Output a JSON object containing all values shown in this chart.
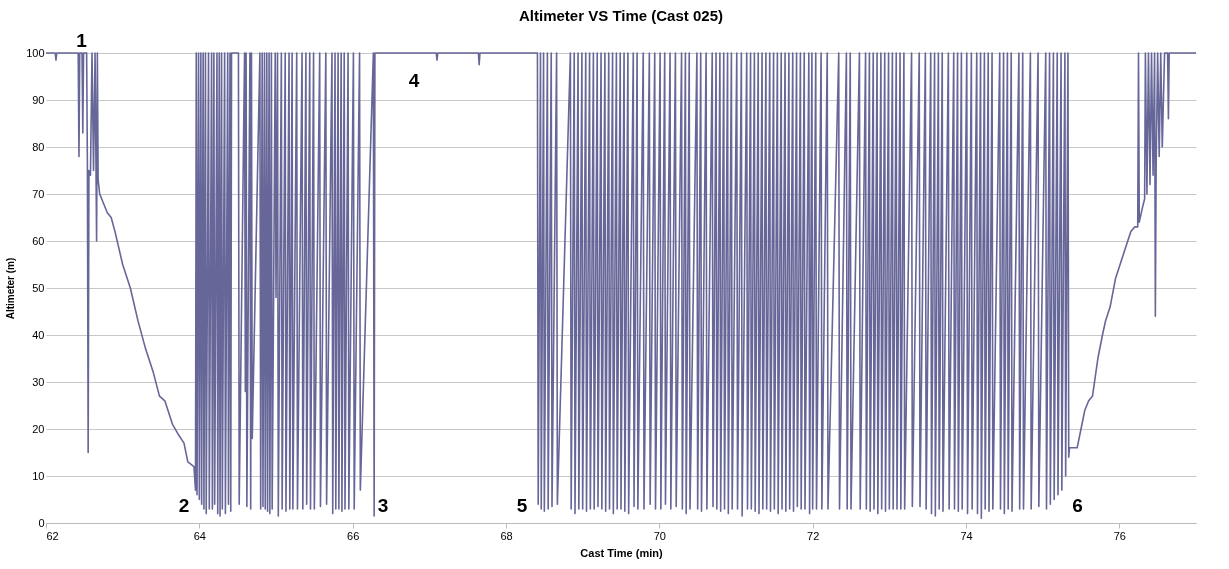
{
  "chart_data": {
    "type": "line",
    "title": "Altimeter VS Time (Cast 025)",
    "xlabel": "Cast Time (min)",
    "ylabel": "Altimeter (m)",
    "xlim": [
      62,
      77
    ],
    "xticks": [
      62,
      64,
      66,
      68,
      70,
      72,
      74,
      76
    ],
    "ylim": [
      0,
      100
    ],
    "yticks": [
      0,
      10,
      20,
      30,
      40,
      50,
      60,
      70,
      80,
      90,
      100
    ],
    "grid": "y",
    "marker": "none",
    "line_style": "solid",
    "annotations": [
      "1",
      "2",
      "3",
      "4",
      "5",
      "6"
    ],
    "series": [
      {
        "color": "#666699",
        "x": [
          62,
          62.12,
          62.13,
          62.14,
          62.42,
          62.43,
          62.44,
          62.47,
          62.48,
          62.49,
          62.53,
          62.54,
          62.55,
          62.56,
          62.58,
          62.6,
          62.62,
          62.64,
          62.66,
          62.67,
          62.68,
          62.7,
          62.8,
          62.85,
          62.9,
          63.0,
          63.1,
          63.2,
          63.3,
          63.4,
          63.48,
          63.55,
          63.65,
          63.72,
          63.8,
          63.85,
          63.93,
          63.95,
          63.96,
          63.97,
          63.99,
          64.0,
          64.02,
          64.03,
          64.05,
          64.06,
          64.08,
          64.09,
          64.12,
          64.13,
          64.16,
          64.17,
          64.19,
          64.2,
          64.23,
          64.24,
          64.26,
          64.27,
          64.29,
          64.3,
          64.33,
          64.34,
          64.37,
          64.38,
          64.4,
          64.41,
          64.42,
          64.51,
          64.52,
          64.59,
          64.6,
          64.61,
          64.62,
          64.66,
          64.67,
          64.68,
          64.69,
          64.79,
          64.8,
          64.82,
          64.83,
          64.85,
          64.86,
          64.88,
          64.89,
          64.91,
          64.92,
          64.94,
          64.95,
          64.99,
          65.0,
          65.02,
          65.03,
          65.07,
          65.08,
          65.12,
          65.13,
          65.17,
          65.18,
          65.21,
          65.22,
          65.27,
          65.28,
          65.34,
          65.35,
          65.39,
          65.4,
          65.44,
          65.45,
          65.49,
          65.5,
          65.57,
          65.58,
          65.65,
          65.66,
          65.73,
          65.74,
          65.77,
          65.78,
          65.81,
          65.82,
          65.85,
          65.86,
          65.89,
          65.9,
          65.94,
          65.95,
          66.01,
          66.02,
          66.09,
          66.1,
          66.27,
          66.28,
          66.29,
          67.09,
          67.1,
          67.11,
          67.64,
          67.65,
          67.66,
          68.41,
          68.42,
          68.45,
          68.46,
          68.49,
          68.5,
          68.54,
          68.55,
          68.59,
          68.6,
          68.66,
          68.67,
          68.84,
          68.85,
          68.89,
          68.9,
          68.94,
          68.95,
          68.99,
          69.0,
          69.04,
          69.05,
          69.09,
          69.1,
          69.14,
          69.15,
          69.19,
          69.2,
          69.24,
          69.25,
          69.29,
          69.3,
          69.34,
          69.35,
          69.39,
          69.4,
          69.44,
          69.45,
          69.49,
          69.5,
          69.54,
          69.55,
          69.59,
          69.6,
          69.66,
          69.67,
          69.71,
          69.72,
          69.79,
          69.8,
          69.87,
          69.88,
          69.94,
          69.95,
          70.01,
          70.02,
          70.07,
          70.08,
          70.14,
          70.15,
          70.21,
          70.22,
          70.29,
          70.3,
          70.34,
          70.35,
          70.39,
          70.4,
          70.49,
          70.5,
          70.54,
          70.55,
          70.61,
          70.62,
          70.69,
          70.7,
          70.74,
          70.75,
          70.79,
          70.8,
          70.84,
          70.85,
          70.89,
          70.9,
          70.94,
          70.95,
          71.01,
          71.02,
          71.07,
          71.08,
          71.14,
          71.15,
          71.19,
          71.2,
          71.24,
          71.25,
          71.29,
          71.3,
          71.34,
          71.35,
          71.39,
          71.4,
          71.44,
          71.45,
          71.49,
          71.5,
          71.54,
          71.55,
          71.59,
          71.6,
          71.64,
          71.65,
          71.69,
          71.7,
          71.74,
          71.75,
          71.79,
          71.8,
          71.84,
          71.85,
          71.89,
          71.9,
          71.95,
          71.96,
          71.99,
          72.0,
          72.04,
          72.05,
          72.11,
          72.12,
          72.19,
          72.2,
          72.34,
          72.35,
          72.44,
          72.45,
          72.49,
          72.5,
          72.61,
          72.62,
          72.69,
          72.7,
          72.74,
          72.75,
          72.79,
          72.8,
          72.84,
          72.85,
          72.89,
          72.9,
          72.94,
          72.95,
          72.99,
          73.0,
          73.04,
          73.05,
          73.09,
          73.1,
          73.14,
          73.15,
          73.19,
          73.2,
          73.29,
          73.3,
          73.39,
          73.4,
          73.47,
          73.48,
          73.54,
          73.55,
          73.59,
          73.6,
          73.64,
          73.65,
          73.69,
          73.7,
          73.77,
          73.78,
          73.84,
          73.85,
          73.89,
          73.9,
          73.94,
          73.95,
          74.01,
          74.02,
          74.07,
          74.08,
          74.14,
          74.15,
          74.19,
          74.2,
          74.24,
          74.25,
          74.29,
          74.3,
          74.34,
          74.35,
          74.44,
          74.45,
          74.49,
          74.5,
          74.54,
          74.55,
          74.59,
          74.6,
          74.69,
          74.7,
          74.74,
          74.75,
          74.84,
          74.85,
          74.94,
          74.95,
          75.04,
          75.05,
          75.09,
          75.1,
          75.14,
          75.15,
          75.19,
          75.2,
          75.24,
          75.25,
          75.29,
          75.3,
          75.33,
          75.34,
          75.35,
          75.45,
          75.5,
          75.55,
          75.6,
          75.65,
          75.72,
          75.78,
          75.82,
          75.88,
          75.95,
          76.05,
          76.15,
          76.2,
          76.24,
          76.25,
          76.26,
          76.3,
          76.33,
          76.34,
          76.36,
          76.38,
          76.4,
          76.42,
          76.44,
          76.46,
          76.47,
          76.48,
          76.5,
          76.52,
          76.54,
          76.56,
          76.59,
          76.63,
          76.64,
          76.65,
          77
        ],
        "values": [
          100,
          100,
          98.5,
          100,
          100,
          78,
          100,
          100,
          83,
          100,
          100,
          76,
          15,
          75,
          74,
          100,
          75,
          100,
          60,
          100,
          73,
          70,
          66,
          65,
          62,
          55,
          50,
          43,
          37,
          32,
          27,
          26,
          21,
          19,
          17,
          13,
          12,
          7,
          100,
          6,
          100,
          5,
          100,
          4,
          100,
          3,
          100,
          2,
          100,
          3,
          100,
          3,
          100,
          4,
          100,
          2,
          100,
          1.5,
          100,
          3,
          100,
          2,
          100,
          4,
          100,
          2.5,
          100,
          100,
          4,
          100,
          28,
          100,
          3.5,
          100,
          3,
          100,
          18,
          100,
          3,
          100,
          3.5,
          100,
          3,
          100,
          2.5,
          100,
          2,
          100,
          3,
          100,
          48,
          100,
          1.5,
          100,
          3,
          100,
          2.5,
          100,
          3,
          100,
          3,
          100,
          3,
          100,
          3,
          100,
          4,
          100,
          3,
          100,
          3,
          100,
          3.5,
          100,
          4,
          100,
          2,
          100,
          3,
          100,
          3,
          100,
          2.5,
          100,
          3,
          100,
          3,
          100,
          3,
          100,
          7,
          100,
          1.5,
          100,
          100,
          98.5,
          100,
          100,
          97.5,
          100,
          100,
          4,
          100,
          3,
          100,
          2.5,
          100,
          3,
          100,
          3.5,
          100,
          4,
          100,
          3,
          100,
          2,
          100,
          3,
          100,
          3,
          100,
          2.5,
          100,
          3,
          100,
          3,
          100,
          3.5,
          100,
          3,
          100,
          2.5,
          100,
          3,
          100,
          2,
          100,
          3,
          100,
          3,
          100,
          2.5,
          100,
          2,
          100,
          3.5,
          100,
          3,
          100,
          3,
          100,
          4,
          100,
          3,
          100,
          3,
          100,
          4,
          100,
          3,
          100,
          3.5,
          100,
          3,
          100,
          2,
          100,
          3,
          100,
          3,
          100,
          2.5,
          100,
          3,
          100,
          3.5,
          100,
          3,
          100,
          2.5,
          100,
          3,
          100,
          2,
          100,
          3,
          100,
          3,
          100,
          1.5,
          100,
          3,
          100,
          3,
          100,
          2.5,
          100,
          2,
          100,
          3,
          100,
          3,
          100,
          2.5,
          100,
          3,
          100,
          2,
          100,
          3,
          100,
          2.5,
          100,
          3,
          100,
          2.5,
          100,
          3.5,
          100,
          3,
          100,
          3,
          100,
          2,
          100,
          3,
          100,
          3,
          100,
          3,
          100,
          3,
          100,
          3,
          100,
          3,
          100,
          3,
          100,
          3,
          100,
          3,
          100,
          2.5,
          100,
          3,
          100,
          2,
          100,
          3,
          100,
          2.5,
          100,
          3,
          100,
          3,
          100,
          3,
          100,
          3,
          100,
          3,
          100,
          3.5,
          100,
          3.5,
          100,
          3,
          100,
          2,
          100,
          1.5,
          100,
          3,
          100,
          2.5,
          100,
          3,
          100,
          3,
          100,
          2.5,
          100,
          3,
          100,
          2,
          100,
          3,
          100,
          2,
          100,
          1,
          100,
          3,
          100,
          2.5,
          100,
          3,
          100,
          3,
          100,
          2,
          100,
          3,
          100,
          2.5,
          100,
          3,
          100,
          3,
          100,
          3,
          100,
          3.5,
          100,
          3,
          100,
          4,
          100,
          5,
          100,
          6,
          100,
          7,
          100,
          10,
          100,
          14,
          16,
          16,
          20,
          24,
          26,
          27,
          35,
          40,
          43,
          46,
          52,
          57,
          62,
          63,
          63,
          100,
          64,
          67,
          69,
          100,
          70,
          100,
          72,
          100,
          74,
          100,
          44,
          76,
          100,
          78,
          100,
          80,
          100,
          100,
          86,
          100,
          100
        ]
      }
    ]
  }
}
